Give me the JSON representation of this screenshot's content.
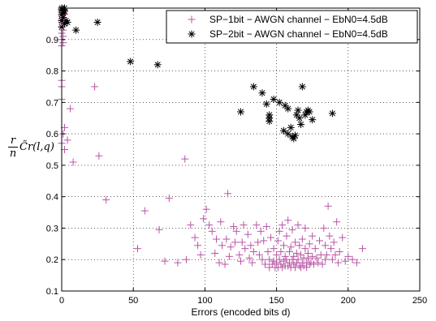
{
  "chart_data": {
    "type": "scatter",
    "title": "",
    "xlabel": "Errors (encoded bits d)",
    "ylabel": {
      "numerator": "r",
      "denominator": "n",
      "expression": "C̃r(l,q)"
    },
    "xlim": [
      0,
      250
    ],
    "ylim": [
      0.1,
      1.0
    ],
    "x_ticks": [
      "0",
      "50",
      "100",
      "150",
      "200",
      "250"
    ],
    "y_ticks": [
      "0.1",
      "0.2",
      "0.3",
      "0.4",
      "0.5",
      "0.6",
      "0.7",
      "0.8",
      "0.9"
    ],
    "grid": true,
    "legend_position": "top-right",
    "series": [
      {
        "name": "SP−1bit − AWGN channel − EbN0=4.5dB",
        "marker": "plus",
        "color": "#b955a5",
        "points": [
          [
            0,
            1.0
          ],
          [
            0,
            0.995
          ],
          [
            0,
            0.99
          ],
          [
            0,
            0.985
          ],
          [
            1,
            0.98
          ],
          [
            0,
            0.975
          ],
          [
            1,
            0.97
          ],
          [
            0,
            0.965
          ],
          [
            1,
            0.96
          ],
          [
            0,
            0.955
          ],
          [
            1,
            0.95
          ],
          [
            0,
            0.94
          ],
          [
            1,
            0.93
          ],
          [
            0,
            0.92
          ],
          [
            1,
            0.91
          ],
          [
            0,
            0.9
          ],
          [
            1,
            0.89
          ],
          [
            0,
            0.88
          ],
          [
            1,
            0.99
          ],
          [
            2,
            0.98
          ],
          [
            2,
            0.995
          ],
          [
            0,
            0.77
          ],
          [
            0,
            0.75
          ],
          [
            0,
            0.71
          ],
          [
            2,
            0.62
          ],
          [
            1,
            0.6
          ],
          [
            0,
            0.57
          ],
          [
            2,
            0.55
          ],
          [
            4,
            0.58
          ],
          [
            6,
            0.68
          ],
          [
            8,
            0.51
          ],
          [
            23,
            0.75
          ],
          [
            26,
            0.53
          ],
          [
            31,
            0.39
          ],
          [
            53,
            0.235
          ],
          [
            58,
            0.355
          ],
          [
            68,
            0.295
          ],
          [
            72,
            0.195
          ],
          [
            75,
            0.395
          ],
          [
            81,
            0.19
          ],
          [
            86,
            0.52
          ],
          [
            87,
            0.2
          ],
          [
            90,
            0.31
          ],
          [
            93,
            0.27
          ],
          [
            95,
            0.245
          ],
          [
            97,
            0.215
          ],
          [
            99,
            0.33
          ],
          [
            101,
            0.36
          ],
          [
            103,
            0.31
          ],
          [
            105,
            0.29
          ],
          [
            107,
            0.22
          ],
          [
            108,
            0.265
          ],
          [
            110,
            0.19
          ],
          [
            111,
            0.32
          ],
          [
            112,
            0.245
          ],
          [
            114,
            0.185
          ],
          [
            115,
            0.265
          ],
          [
            116,
            0.41
          ],
          [
            117,
            0.21
          ],
          [
            118,
            0.24
          ],
          [
            120,
            0.305
          ],
          [
            121,
            0.255
          ],
          [
            122,
            0.29
          ],
          [
            124,
            0.215
          ],
          [
            125,
            0.195
          ],
          [
            126,
            0.255
          ],
          [
            127,
            0.31
          ],
          [
            128,
            0.235
          ],
          [
            130,
            0.28
          ],
          [
            131,
            0.205
          ],
          [
            132,
            0.245
          ],
          [
            133,
            0.19
          ],
          [
            134,
            0.225
          ],
          [
            136,
            0.31
          ],
          [
            137,
            0.255
          ],
          [
            138,
            0.215
          ],
          [
            139,
            0.29
          ],
          [
            140,
            0.2
          ],
          [
            141,
            0.26
          ],
          [
            142,
            0.185
          ],
          [
            143,
            0.305
          ],
          [
            144,
            0.225
          ],
          [
            145,
            0.175
          ],
          [
            145,
            0.2
          ],
          [
            146,
            0.27
          ],
          [
            147,
            0.185
          ],
          [
            148,
            0.235
          ],
          [
            148,
            0.195
          ],
          [
            149,
            0.175
          ],
          [
            150,
            0.215
          ],
          [
            150,
            0.19
          ],
          [
            151,
            0.26
          ],
          [
            151,
            0.175
          ],
          [
            152,
            0.29
          ],
          [
            152,
            0.2
          ],
          [
            153,
            0.185
          ],
          [
            153,
            0.225
          ],
          [
            154,
            0.175
          ],
          [
            154,
            0.31
          ],
          [
            155,
            0.195
          ],
          [
            155,
            0.245
          ],
          [
            156,
            0.18
          ],
          [
            156,
            0.21
          ],
          [
            157,
            0.2
          ],
          [
            157,
            0.275
          ],
          [
            158,
            0.325
          ],
          [
            158,
            0.18
          ],
          [
            159,
            0.225
          ],
          [
            159,
            0.19
          ],
          [
            160,
            0.24
          ],
          [
            160,
            0.175
          ],
          [
            161,
            0.2
          ],
          [
            161,
            0.295
          ],
          [
            162,
            0.185
          ],
          [
            162,
            0.21
          ],
          [
            163,
            0.255
          ],
          [
            163,
            0.175
          ],
          [
            164,
            0.22
          ],
          [
            164,
            0.19
          ],
          [
            165,
            0.31
          ],
          [
            165,
            0.2
          ],
          [
            166,
            0.18
          ],
          [
            166,
            0.245
          ],
          [
            167,
            0.215
          ],
          [
            167,
            0.175
          ],
          [
            168,
            0.19
          ],
          [
            168,
            0.265
          ],
          [
            169,
            0.205
          ],
          [
            169,
            0.18
          ],
          [
            170,
            0.3
          ],
          [
            170,
            0.235
          ],
          [
            171,
            0.19
          ],
          [
            171,
            0.175
          ],
          [
            172,
            0.22
          ],
          [
            172,
            0.205
          ],
          [
            173,
            0.25
          ],
          [
            173,
            0.185
          ],
          [
            174,
            0.19
          ],
          [
            175,
            0.275
          ],
          [
            175,
            0.21
          ],
          [
            176,
            0.185
          ],
          [
            177,
            0.235
          ],
          [
            178,
            0.205
          ],
          [
            179,
            0.19
          ],
          [
            180,
            0.26
          ],
          [
            181,
            0.215
          ],
          [
            182,
            0.185
          ],
          [
            183,
            0.3
          ],
          [
            184,
            0.245
          ],
          [
            184,
            0.2
          ],
          [
            185,
            0.215
          ],
          [
            186,
            0.37
          ],
          [
            187,
            0.275
          ],
          [
            188,
            0.235
          ],
          [
            189,
            0.2
          ],
          [
            190,
            0.255
          ],
          [
            191,
            0.215
          ],
          [
            192,
            0.32
          ],
          [
            193,
            0.19
          ],
          [
            194,
            0.225
          ],
          [
            196,
            0.27
          ],
          [
            198,
            0.195
          ],
          [
            200,
            0.21
          ],
          [
            203,
            0.2
          ],
          [
            206,
            0.19
          ],
          [
            210,
            0.235
          ]
        ]
      },
      {
        "name": "SP−2bit − AWGN channel − EbN0=4.5dB",
        "marker": "asterisk",
        "color": "#000000",
        "points": [
          [
            0,
            1.0
          ],
          [
            0,
            0.995
          ],
          [
            1,
            0.99
          ],
          [
            1,
            0.985
          ],
          [
            2,
            0.99
          ],
          [
            2,
            1.0
          ],
          [
            0,
            0.98
          ],
          [
            0,
            0.96
          ],
          [
            1,
            0.97
          ],
          [
            3,
            0.96
          ],
          [
            2,
            0.95
          ],
          [
            0,
            0.94
          ],
          [
            4,
            0.955
          ],
          [
            10,
            0.93
          ],
          [
            25,
            0.955
          ],
          [
            48,
            0.83
          ],
          [
            67,
            0.82
          ],
          [
            125,
            0.67
          ],
          [
            134,
            0.75
          ],
          [
            140,
            0.73
          ],
          [
            143,
            0.695
          ],
          [
            145,
            0.66
          ],
          [
            145,
            0.64
          ],
          [
            145,
            0.65
          ],
          [
            148,
            0.71
          ],
          [
            152,
            0.7
          ],
          [
            155,
            0.61
          ],
          [
            156,
            0.69
          ],
          [
            158,
            0.6
          ],
          [
            158,
            0.68
          ],
          [
            160,
            0.62
          ],
          [
            161,
            0.59
          ],
          [
            162,
            0.585
          ],
          [
            163,
            0.595
          ],
          [
            164,
            0.66
          ],
          [
            165,
            0.675
          ],
          [
            166,
            0.65
          ],
          [
            167,
            0.63
          ],
          [
            168,
            0.75
          ],
          [
            170,
            0.66
          ],
          [
            171,
            0.67
          ],
          [
            172,
            0.675
          ],
          [
            173,
            0.67
          ],
          [
            175,
            0.645
          ],
          [
            189,
            0.665
          ]
        ]
      }
    ]
  }
}
